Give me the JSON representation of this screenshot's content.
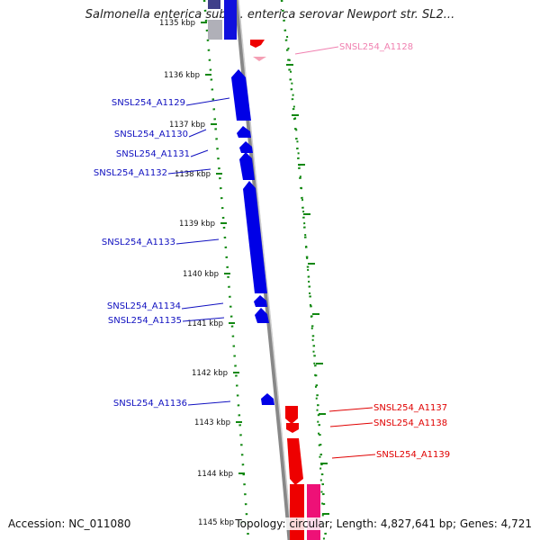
{
  "title": "Salmonella enterica subsp. enterica serovar Newport str. SL2...",
  "accession": "Accession: NC_011080",
  "topology": "Topology: circular; Length: 4,827,641 bp; Genes: 4,721",
  "ticks": [
    "1135 kbp",
    "1136 kbp",
    "1137 kbp",
    "1138 kbp",
    "1139 kbp",
    "1140 kbp",
    "1141 kbp",
    "1142 kbp",
    "1143 kbp",
    "1144 kbp",
    "1145 kbp"
  ],
  "genes_left": [
    {
      "name": "SNSL254_A1129",
      "color": "#1010c0"
    },
    {
      "name": "SNSL254_A1130",
      "color": "#1010c0"
    },
    {
      "name": "SNSL254_A1131",
      "color": "#1010c0"
    },
    {
      "name": "SNSL254_A1132",
      "color": "#1010c0"
    },
    {
      "name": "SNSL254_A1133",
      "color": "#1010c0"
    },
    {
      "name": "SNSL254_A1134",
      "color": "#1010c0"
    },
    {
      "name": "SNSL254_A1135",
      "color": "#1010c0"
    },
    {
      "name": "SNSL254_A1136",
      "color": "#1010c0"
    }
  ],
  "genes_right": [
    {
      "name": "SNSL254_A1128",
      "color": "#f080b0"
    },
    {
      "name": "SNSL254_A1137",
      "color": "#e00000"
    },
    {
      "name": "SNSL254_A1138",
      "color": "#e00000"
    },
    {
      "name": "SNSL254_A1139",
      "color": "#e00000"
    }
  ],
  "colors": {
    "forward_strand": "#0000ee",
    "reverse_strand": "#ff0000",
    "pseudo": "#ff66aa",
    "backbone": "#888888",
    "ticks": "#007700"
  }
}
